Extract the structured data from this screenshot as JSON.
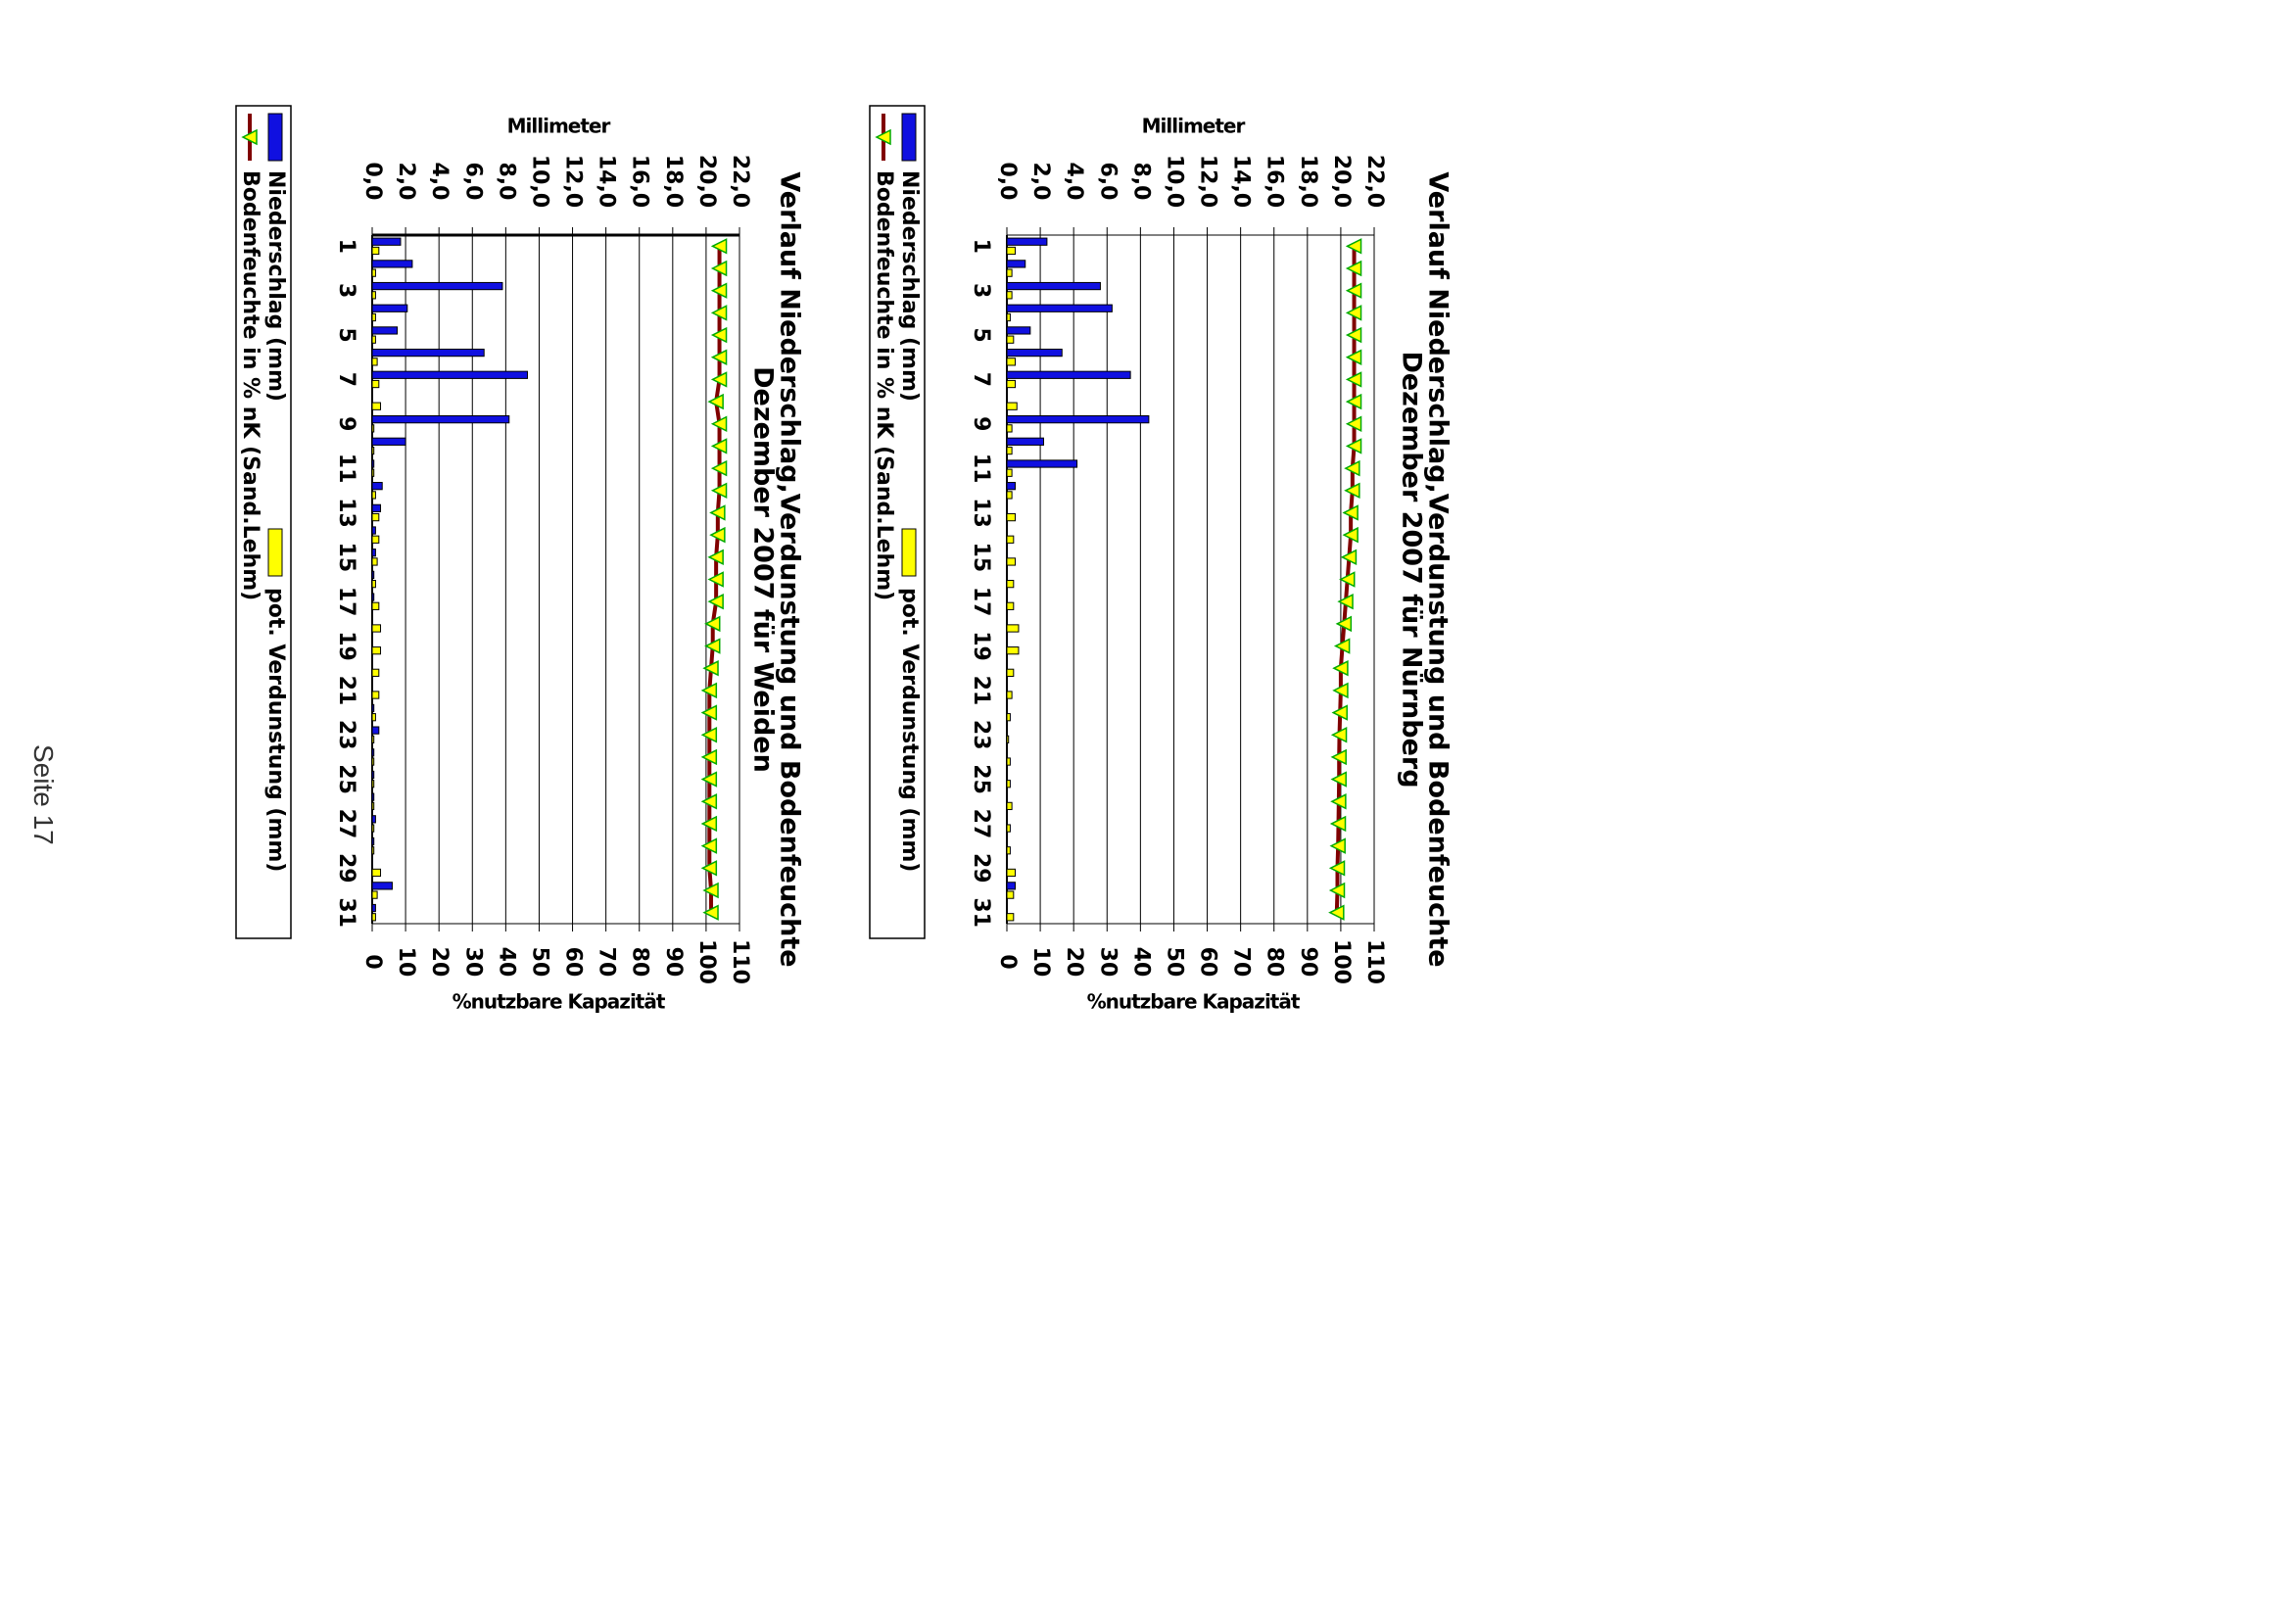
{
  "page": {
    "footer": "Seite 17"
  },
  "legend": {
    "precip": "Niederschlag (mm)",
    "evap": "pot. Verdunstung (mm)",
    "soil": "Bodenfeuchte in % nK (Sand.Lehm)"
  },
  "colors": {
    "precip": "#1010e0",
    "evap": "#ffff00",
    "soil": "#800000",
    "marker": "#ffff00",
    "marker_edge": "#00aa00"
  },
  "chart_data": [
    {
      "type": "bar",
      "title_line1": "Verlauf Niederschlag,Verdunstung und Bodenfeuchte",
      "title_line2": "Dezember 2007 für Nürnberg",
      "ylabel": "Millimeter",
      "y2label": "%nutzbare Kapazität",
      "ylim": [
        0,
        22
      ],
      "y_ticks": [
        "0,0",
        "2,0",
        "4,0",
        "6,0",
        "8,0",
        "10,0",
        "12,0",
        "14,0",
        "16,0",
        "18,0",
        "20,0",
        "22,0"
      ],
      "y2lim": [
        0,
        110
      ],
      "y2_ticks": [
        "0",
        "10",
        "20",
        "30",
        "40",
        "50",
        "60",
        "70",
        "80",
        "90",
        "100",
        "110"
      ],
      "x_ticks": [
        "1",
        "3",
        "5",
        "7",
        "9",
        "11",
        "13",
        "15",
        "17",
        "19",
        "21",
        "23",
        "25",
        "27",
        "29",
        "31"
      ],
      "grid": true,
      "days": [
        1,
        2,
        3,
        4,
        5,
        6,
        7,
        8,
        9,
        10,
        11,
        12,
        13,
        14,
        15,
        16,
        17,
        18,
        19,
        20,
        21,
        22,
        23,
        24,
        25,
        26,
        27,
        28,
        29,
        30,
        31
      ],
      "series": [
        {
          "name": "Niederschlag (mm)",
          "values": [
            2.4,
            1.1,
            5.6,
            6.3,
            1.4,
            3.3,
            7.4,
            0,
            8.5,
            2.2,
            4.2,
            0.5,
            0,
            0,
            0,
            0,
            0,
            0,
            0,
            0,
            0,
            0,
            0,
            0,
            0,
            0,
            0,
            0,
            0,
            0.5,
            0
          ]
        },
        {
          "name": "pot. Verdunstung (mm)",
          "values": [
            0.5,
            0.3,
            0.3,
            0.2,
            0.4,
            0.5,
            0.5,
            0.6,
            0.3,
            0.3,
            0.3,
            0.3,
            0.5,
            0.4,
            0.5,
            0.4,
            0.4,
            0.7,
            0.7,
            0.4,
            0.3,
            0.2,
            0.1,
            0.2,
            0.2,
            0.3,
            0.2,
            0.2,
            0.5,
            0.4,
            0.4
          ]
        },
        {
          "name": "Bodenfeuchte in % nK (Sand.Lehm)",
          "values": [
            104,
            104,
            104,
            104,
            104,
            104,
            104,
            104,
            104,
            104,
            103.5,
            103.5,
            103,
            103,
            102.5,
            102,
            101.5,
            101,
            100.5,
            100,
            100,
            99.8,
            99.6,
            99.5,
            99.5,
            99.4,
            99.3,
            99.2,
            99,
            99,
            98.8
          ]
        }
      ]
    },
    {
      "type": "bar",
      "title_line1": "Verlauf Niederschlag,Verdunstung und Bodenfeuchte",
      "title_line2": "Dezember 2007 für Weiden",
      "ylabel": "Millimeter",
      "y2label": "%nutzbare Kapazität",
      "ylim": [
        0,
        22
      ],
      "y_ticks": [
        "0,0",
        "2,0",
        "4,0",
        "6,0",
        "8,0",
        "10,0",
        "12,0",
        "14,0",
        "16,0",
        "18,0",
        "20,0",
        "22,0"
      ],
      "y2lim": [
        0,
        110
      ],
      "y2_ticks": [
        "0",
        "10",
        "20",
        "30",
        "40",
        "50",
        "60",
        "70",
        "80",
        "90",
        "100",
        "110"
      ],
      "x_ticks": [
        "1",
        "3",
        "5",
        "7",
        "9",
        "11",
        "13",
        "15",
        "17",
        "19",
        "21",
        "23",
        "25",
        "27",
        "29",
        "31"
      ],
      "grid": true,
      "days": [
        1,
        2,
        3,
        4,
        5,
        6,
        7,
        8,
        9,
        10,
        11,
        12,
        13,
        14,
        15,
        16,
        17,
        18,
        19,
        20,
        21,
        22,
        23,
        24,
        25,
        26,
        27,
        28,
        29,
        30,
        31
      ],
      "series": [
        {
          "name": "Niederschlag (mm)",
          "values": [
            1.7,
            2.4,
            7.8,
            2.1,
            1.5,
            6.7,
            9.3,
            0,
            8.2,
            2.0,
            0.1,
            0.6,
            0.5,
            0.2,
            0.2,
            0.1,
            0.1,
            0,
            0,
            0,
            0,
            0.1,
            0.4,
            0.1,
            0.1,
            0.1,
            0.2,
            0.1,
            0,
            1.2,
            0.2
          ]
        },
        {
          "name": "pot. Verdunstung (mm)",
          "values": [
            0.4,
            0.2,
            0.2,
            0.2,
            0.2,
            0.3,
            0.4,
            0.5,
            0.1,
            0.1,
            0.1,
            0.2,
            0.4,
            0.4,
            0.3,
            0.2,
            0.4,
            0.5,
            0.5,
            0.4,
            0.4,
            0.2,
            0.1,
            0.1,
            0.1,
            0.1,
            0.1,
            0.1,
            0.5,
            0.3,
            0.2
          ]
        },
        {
          "name": "Bodenfeuchte in % nK (Sand.Lehm)",
          "values": [
            104,
            104,
            104,
            104,
            104,
            104,
            104,
            103,
            104,
            104,
            104,
            104,
            103.5,
            103.5,
            103,
            103,
            103,
            102,
            102,
            101.5,
            101,
            101,
            101,
            101,
            101,
            101,
            101,
            101,
            101,
            101.5,
            101.5
          ]
        }
      ]
    }
  ]
}
